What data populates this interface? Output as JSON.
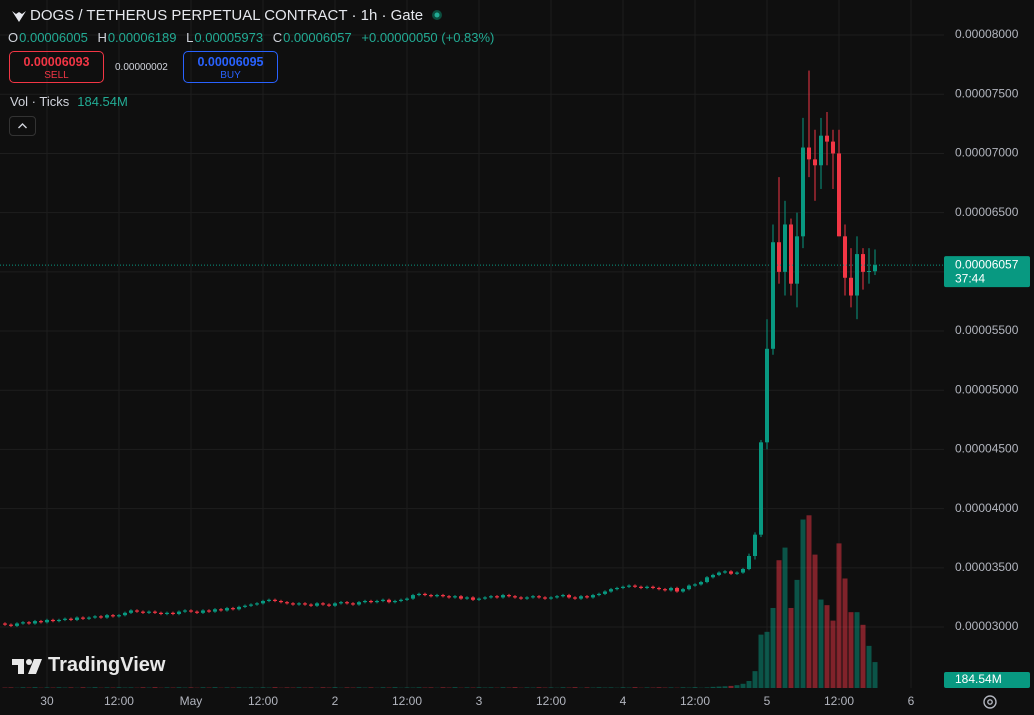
{
  "header": {
    "symbol": "DOGS / TETHERUS PERPETUAL CONTRACT · 1h · Gate",
    "ohlc": [
      {
        "key": "O",
        "value": "0.00006005"
      },
      {
        "key": "H",
        "value": "0.00006189"
      },
      {
        "key": "L",
        "value": "0.00005973"
      },
      {
        "key": "C",
        "value": "0.00006057"
      }
    ],
    "change": "+0.00000050 (+0.83%)",
    "sell_price": "0.00006093",
    "sell_label": "SELL",
    "spread": "0.00000002",
    "buy_price": "0.00006095",
    "buy_label": "BUY",
    "volume_legend": "Vol · Ticks",
    "logo": "TradingView"
  },
  "chart_data": {
    "type": "candlestick",
    "x": [
      -7,
      -6,
      -5,
      -4,
      -3,
      -2,
      -1,
      0,
      1,
      2,
      3,
      4,
      5,
      6,
      7,
      8,
      9,
      10,
      11,
      12,
      13,
      14,
      15,
      16,
      17,
      18,
      19,
      20,
      21,
      22,
      23,
      24,
      25,
      26,
      27,
      28,
      29,
      30,
      31,
      32,
      33,
      34,
      35,
      36,
      37,
      38,
      39,
      40,
      41,
      42,
      43,
      44,
      45,
      46,
      47,
      48,
      49,
      50,
      51,
      52,
      53,
      54,
      55,
      56,
      57,
      58,
      59,
      60,
      61,
      62,
      63,
      64,
      65,
      66,
      67,
      68,
      69,
      70,
      71,
      72,
      73,
      74,
      75,
      76,
      77,
      78,
      79,
      80,
      81,
      82,
      83,
      84,
      85,
      86,
      87,
      88,
      89,
      90,
      91,
      92,
      93,
      94,
      95,
      96,
      97,
      98,
      99,
      100,
      101,
      102,
      103,
      104,
      105,
      106,
      107,
      108,
      109,
      110,
      111,
      112,
      113,
      114,
      115,
      116,
      117,
      118,
      119,
      120,
      121,
      122,
      123,
      124,
      125,
      126,
      127,
      128,
      129,
      130,
      131,
      132,
      133,
      134,
      135,
      136,
      137,
      138
    ],
    "open": [
      3.03e-05,
      3.02e-05,
      3.01e-05,
      3.03e-05,
      3.04e-05,
      3.03e-05,
      3.05e-05,
      3.04e-05,
      3.06e-05,
      3.05e-05,
      3.06e-05,
      3.07e-05,
      3.06e-05,
      3.08e-05,
      3.07e-05,
      3.08e-05,
      3.09e-05,
      3.08e-05,
      3.1e-05,
      3.09e-05,
      3.1e-05,
      3.12e-05,
      3.14e-05,
      3.13e-05,
      3.12e-05,
      3.13e-05,
      3.12e-05,
      3.11e-05,
      3.12e-05,
      3.11e-05,
      3.13e-05,
      3.14e-05,
      3.13e-05,
      3.12e-05,
      3.14e-05,
      3.13e-05,
      3.15e-05,
      3.14e-05,
      3.16e-05,
      3.15e-05,
      3.17e-05,
      3.18e-05,
      3.19e-05,
      3.2e-05,
      3.22e-05,
      3.23e-05,
      3.22e-05,
      3.21e-05,
      3.2e-05,
      3.19e-05,
      3.2e-05,
      3.19e-05,
      3.18e-05,
      3.2e-05,
      3.19e-05,
      3.18e-05,
      3.2e-05,
      3.21e-05,
      3.2e-05,
      3.19e-05,
      3.21e-05,
      3.22e-05,
      3.21e-05,
      3.22e-05,
      3.23e-05,
      3.21e-05,
      3.22e-05,
      3.23e-05,
      3.24e-05,
      3.27e-05,
      3.28e-05,
      3.27e-05,
      3.26e-05,
      3.27e-05,
      3.26e-05,
      3.25e-05,
      3.26e-05,
      3.24e-05,
      3.25e-05,
      3.23e-05,
      3.24e-05,
      3.25e-05,
      3.26e-05,
      3.25e-05,
      3.27e-05,
      3.26e-05,
      3.25e-05,
      3.24e-05,
      3.25e-05,
      3.26e-05,
      3.25e-05,
      3.24e-05,
      3.25e-05,
      3.26e-05,
      3.27e-05,
      3.25e-05,
      3.24e-05,
      3.26e-05,
      3.25e-05,
      3.27e-05,
      3.28e-05,
      3.3e-05,
      3.32e-05,
      3.33e-05,
      3.34e-05,
      3.35e-05,
      3.34e-05,
      3.33e-05,
      3.34e-05,
      3.33e-05,
      3.32e-05,
      3.31e-05,
      3.33e-05,
      3.3e-05,
      3.32e-05,
      3.35e-05,
      3.36e-05,
      3.38e-05,
      3.42e-05,
      3.44e-05,
      3.46e-05,
      3.47e-05,
      3.45e-05,
      3.46e-05,
      3.49e-05,
      3.6e-05,
      3.78e-05,
      4.56e-05,
      5.35e-05,
      6.25e-05,
      6e-05,
      6.4e-05,
      5.9e-05,
      6.3e-05,
      7.05e-05,
      6.95e-05,
      6.9e-05,
      7.15e-05,
      7.1e-05,
      7e-05,
      6.3e-05,
      5.95e-05,
      5.8e-05,
      6.15e-05,
      6e-05,
      6.005e-05
    ],
    "high": [
      3.04e-05,
      3.03e-05,
      3.04e-05,
      3.05e-05,
      3.05e-05,
      3.06e-05,
      3.06e-05,
      3.07e-05,
      3.07e-05,
      3.07e-05,
      3.08e-05,
      3.08e-05,
      3.09e-05,
      3.09e-05,
      3.09e-05,
      3.1e-05,
      3.1e-05,
      3.11e-05,
      3.11e-05,
      3.11e-05,
      3.13e-05,
      3.15e-05,
      3.15e-05,
      3.14e-05,
      3.14e-05,
      3.14e-05,
      3.13e-05,
      3.13e-05,
      3.13e-05,
      3.14e-05,
      3.15e-05,
      3.15e-05,
      3.14e-05,
      3.15e-05,
      3.15e-05,
      3.16e-05,
      3.16e-05,
      3.17e-05,
      3.17e-05,
      3.18e-05,
      3.19e-05,
      3.2e-05,
      3.21e-05,
      3.23e-05,
      3.24e-05,
      3.24e-05,
      3.23e-05,
      3.22e-05,
      3.21e-05,
      3.21e-05,
      3.21e-05,
      3.2e-05,
      3.21e-05,
      3.21e-05,
      3.2e-05,
      3.21e-05,
      3.22e-05,
      3.22e-05,
      3.21e-05,
      3.22e-05,
      3.23e-05,
      3.23e-05,
      3.23e-05,
      3.24e-05,
      3.24e-05,
      3.23e-05,
      3.24e-05,
      3.25e-05,
      3.28e-05,
      3.29e-05,
      3.29e-05,
      3.28e-05,
      3.28e-05,
      3.28e-05,
      3.27e-05,
      3.27e-05,
      3.27e-05,
      3.26e-05,
      3.26e-05,
      3.25e-05,
      3.26e-05,
      3.27e-05,
      3.27e-05,
      3.28e-05,
      3.28e-05,
      3.27e-05,
      3.26e-05,
      3.26e-05,
      3.27e-05,
      3.27e-05,
      3.26e-05,
      3.26e-05,
      3.27e-05,
      3.28e-05,
      3.28e-05,
      3.26e-05,
      3.27e-05,
      3.27e-05,
      3.28e-05,
      3.29e-05,
      3.31e-05,
      3.33e-05,
      3.34e-05,
      3.35e-05,
      3.36e-05,
      3.36e-05,
      3.35e-05,
      3.35e-05,
      3.35e-05,
      3.34e-05,
      3.33e-05,
      3.34e-05,
      3.34e-05,
      3.33e-05,
      3.36e-05,
      3.37e-05,
      3.39e-05,
      3.43e-05,
      3.45e-05,
      3.47e-05,
      3.48e-05,
      3.48e-05,
      3.47e-05,
      3.5e-05,
      3.62e-05,
      3.8e-05,
      4.58e-05,
      5.6e-05,
      6.4e-05,
      6.8e-05,
      6.6e-05,
      6.45e-05,
      6.5e-05,
      7.3e-05,
      7.7e-05,
      7.2e-05,
      7.3e-05,
      7.35e-05,
      7.2e-05,
      7.2e-05,
      6.4e-05,
      6.2e-05,
      6.3e-05,
      6.2e-05,
      6.2e-05,
      6.189e-05
    ],
    "low": [
      3.01e-05,
      3e-05,
      3e-05,
      3.02e-05,
      3.02e-05,
      3.02e-05,
      3.03e-05,
      3.03e-05,
      3.04e-05,
      3.04e-05,
      3.05e-05,
      3.05e-05,
      3.05e-05,
      3.06e-05,
      3.06e-05,
      3.07e-05,
      3.07e-05,
      3.07e-05,
      3.08e-05,
      3.08e-05,
      3.09e-05,
      3.11e-05,
      3.12e-05,
      3.11e-05,
      3.11e-05,
      3.11e-05,
      3.1e-05,
      3.1e-05,
      3.1e-05,
      3.1e-05,
      3.12e-05,
      3.12e-05,
      3.11e-05,
      3.11e-05,
      3.12e-05,
      3.12e-05,
      3.13e-05,
      3.13e-05,
      3.14e-05,
      3.14e-05,
      3.16e-05,
      3.17e-05,
      3.18e-05,
      3.19e-05,
      3.21e-05,
      3.21e-05,
      3.2e-05,
      3.19e-05,
      3.18e-05,
      3.18e-05,
      3.18e-05,
      3.17e-05,
      3.17e-05,
      3.18e-05,
      3.17e-05,
      3.17e-05,
      3.19e-05,
      3.19e-05,
      3.18e-05,
      3.18e-05,
      3.2e-05,
      3.2e-05,
      3.2e-05,
      3.21e-05,
      3.2e-05,
      3.2e-05,
      3.21e-05,
      3.22e-05,
      3.23e-05,
      3.26e-05,
      3.26e-05,
      3.25e-05,
      3.25e-05,
      3.25e-05,
      3.24e-05,
      3.24e-05,
      3.23e-05,
      3.23e-05,
      3.22e-05,
      3.22e-05,
      3.23e-05,
      3.24e-05,
      3.24e-05,
      3.24e-05,
      3.25e-05,
      3.24e-05,
      3.23e-05,
      3.23e-05,
      3.24e-05,
      3.24e-05,
      3.23e-05,
      3.23e-05,
      3.24e-05,
      3.25e-05,
      3.24e-05,
      3.23e-05,
      3.23e-05,
      3.24e-05,
      3.24e-05,
      3.26e-05,
      3.27e-05,
      3.29e-05,
      3.31e-05,
      3.32e-05,
      3.33e-05,
      3.33e-05,
      3.32e-05,
      3.32e-05,
      3.32e-05,
      3.31e-05,
      3.3e-05,
      3.3e-05,
      3.29e-05,
      3.29e-05,
      3.31e-05,
      3.34e-05,
      3.35e-05,
      3.37e-05,
      3.41e-05,
      3.43e-05,
      3.45e-05,
      3.44e-05,
      3.44e-05,
      3.45e-05,
      3.48e-05,
      3.57e-05,
      3.76e-05,
      4.5e-05,
      5.3e-05,
      5.9e-05,
      5.8e-05,
      5.8e-05,
      5.7e-05,
      6.2e-05,
      6.8e-05,
      6.6e-05,
      6.7e-05,
      6.9e-05,
      6.7e-05,
      6.3e-05,
      5.8e-05,
      5.7e-05,
      5.6e-05,
      5.85e-05,
      5.9e-05,
      5.973e-05
    ],
    "close": [
      3.02e-05,
      3.01e-05,
      3.03e-05,
      3.04e-05,
      3.03e-05,
      3.05e-05,
      3.04e-05,
      3.06e-05,
      3.05e-05,
      3.06e-05,
      3.07e-05,
      3.06e-05,
      3.08e-05,
      3.07e-05,
      3.08e-05,
      3.09e-05,
      3.08e-05,
      3.1e-05,
      3.09e-05,
      3.1e-05,
      3.12e-05,
      3.14e-05,
      3.13e-05,
      3.12e-05,
      3.13e-05,
      3.12e-05,
      3.11e-05,
      3.12e-05,
      3.11e-05,
      3.13e-05,
      3.14e-05,
      3.13e-05,
      3.12e-05,
      3.14e-05,
      3.13e-05,
      3.15e-05,
      3.14e-05,
      3.16e-05,
      3.15e-05,
      3.17e-05,
      3.18e-05,
      3.19e-05,
      3.2e-05,
      3.22e-05,
      3.23e-05,
      3.22e-05,
      3.21e-05,
      3.2e-05,
      3.19e-05,
      3.2e-05,
      3.19e-05,
      3.18e-05,
      3.2e-05,
      3.19e-05,
      3.18e-05,
      3.2e-05,
      3.21e-05,
      3.2e-05,
      3.19e-05,
      3.21e-05,
      3.22e-05,
      3.21e-05,
      3.22e-05,
      3.23e-05,
      3.21e-05,
      3.22e-05,
      3.23e-05,
      3.24e-05,
      3.27e-05,
      3.28e-05,
      3.27e-05,
      3.26e-05,
      3.27e-05,
      3.26e-05,
      3.25e-05,
      3.26e-05,
      3.24e-05,
      3.25e-05,
      3.23e-05,
      3.24e-05,
      3.25e-05,
      3.26e-05,
      3.25e-05,
      3.27e-05,
      3.26e-05,
      3.25e-05,
      3.24e-05,
      3.25e-05,
      3.26e-05,
      3.25e-05,
      3.24e-05,
      3.25e-05,
      3.26e-05,
      3.27e-05,
      3.25e-05,
      3.24e-05,
      3.26e-05,
      3.25e-05,
      3.27e-05,
      3.28e-05,
      3.3e-05,
      3.32e-05,
      3.33e-05,
      3.34e-05,
      3.35e-05,
      3.34e-05,
      3.33e-05,
      3.34e-05,
      3.33e-05,
      3.32e-05,
      3.31e-05,
      3.33e-05,
      3.3e-05,
      3.32e-05,
      3.35e-05,
      3.36e-05,
      3.38e-05,
      3.42e-05,
      3.44e-05,
      3.46e-05,
      3.47e-05,
      3.45e-05,
      3.46e-05,
      3.49e-05,
      3.6e-05,
      3.78e-05,
      4.56e-05,
      5.35e-05,
      6.25e-05,
      6e-05,
      6.4e-05,
      5.9e-05,
      6.3e-05,
      7.05e-05,
      6.95e-05,
      6.9e-05,
      7.15e-05,
      7.1e-05,
      7e-05,
      6.3e-05,
      5.95e-05,
      5.8e-05,
      6.15e-05,
      6e-05,
      6.007e-05,
      6.057e-05
    ],
    "volume": {
      "values": [
        3000000,
        4000000,
        2000000,
        5000000,
        3000000,
        6000000,
        2000000,
        4000000,
        3000000,
        5000000,
        3000000,
        4000000,
        2000000,
        5000000,
        3000000,
        6000000,
        2000000,
        4000000,
        3000000,
        5000000,
        3000000,
        4000000,
        2000000,
        5000000,
        3000000,
        6000000,
        2000000,
        4000000,
        3000000,
        5000000,
        3000000,
        4000000,
        2000000,
        5000000,
        3000000,
        6000000,
        2000000,
        4000000,
        3000000,
        5000000,
        3000000,
        4000000,
        2000000,
        5000000,
        3000000,
        6000000,
        2000000,
        4000000,
        3000000,
        5000000,
        3000000,
        4000000,
        2000000,
        5000000,
        3000000,
        6000000,
        2000000,
        4000000,
        3000000,
        5000000,
        3000000,
        4000000,
        2000000,
        5000000,
        3000000,
        6000000,
        2000000,
        4000000,
        3000000,
        5000000,
        3000000,
        4000000,
        2000000,
        5000000,
        3000000,
        6000000,
        2000000,
        4000000,
        3000000,
        5000000,
        3000000,
        4000000,
        2000000,
        5000000,
        3000000,
        6000000,
        2000000,
        4000000,
        3000000,
        5000000,
        3000000,
        4000000,
        2000000,
        5000000,
        3000000,
        6000000,
        2000000,
        4000000,
        3000000,
        5000000,
        3000000,
        4000000,
        2000000,
        5000000,
        3000000,
        6000000,
        2000000,
        4000000,
        3000000,
        5000000,
        3000000,
        4000000,
        2000000,
        5000000,
        3000000,
        6000000,
        2000000,
        4000000,
        8000000,
        10000000,
        12000000,
        15000000,
        20000000,
        30000000,
        50000000,
        120000000,
        380000000,
        400000000,
        570000000,
        910000000,
        1000000000,
        570000000,
        770000000,
        1200000000,
        1230000000,
        950000000,
        630000000,
        590000000,
        480000000,
        1030000000,
        780000000,
        540000000,
        540000000,
        450000000,
        300000000,
        184540000
      ],
      "value_labels": [
        null,
        null,
        null,
        null,
        null,
        null,
        null,
        null,
        null,
        null,
        null,
        null,
        null,
        null,
        null,
        null,
        null,
        null,
        null,
        null,
        null,
        null,
        null,
        null,
        null,
        null,
        null,
        null,
        null,
        null,
        null,
        null,
        null,
        null,
        null,
        null,
        null,
        null,
        null,
        null,
        null,
        null,
        null,
        null,
        null,
        null,
        null,
        null,
        null,
        null,
        null,
        null,
        null,
        null,
        null,
        null,
        null,
        null,
        null,
        null,
        null,
        null,
        null,
        null,
        null,
        null,
        null,
        null,
        null,
        null,
        null,
        null,
        null,
        null,
        null,
        null,
        null,
        null,
        null,
        null,
        null,
        null,
        null,
        null,
        null,
        null,
        null,
        null,
        null,
        null,
        null,
        null,
        null,
        null,
        null,
        null,
        null,
        null,
        null,
        null,
        null,
        null,
        null,
        null,
        null,
        null,
        null,
        null,
        null,
        null,
        null,
        null,
        null,
        null,
        null,
        null,
        null,
        null,
        null,
        null,
        null,
        null,
        null,
        null,
        null,
        null,
        null,
        null,
        null,
        null,
        null,
        null,
        null,
        null,
        null,
        null,
        null,
        null,
        null,
        null,
        null,
        null,
        null,
        null,
        null,
        "184.54M"
      ]
    },
    "countdown": "37:44",
    "up_color": "#089981",
    "down_color": "#f23645",
    "grid": true,
    "xlim": [
      -7.83,
      149.5
    ],
    "xticks": [
      {
        "value": 0,
        "label": "30"
      },
      {
        "value": 12,
        "label": "12:00"
      },
      {
        "value": 24,
        "label": "May"
      },
      {
        "value": 36,
        "label": "12:00"
      },
      {
        "value": 48,
        "label": "2"
      },
      {
        "value": 60,
        "label": "12:00"
      },
      {
        "value": 72,
        "label": "3"
      },
      {
        "value": 84,
        "label": "12:00"
      },
      {
        "value": 96,
        "label": "4"
      },
      {
        "value": 108,
        "label": "12:00"
      },
      {
        "value": 120,
        "label": "5"
      },
      {
        "value": 132,
        "label": "12:00"
      },
      {
        "value": 144,
        "label": "6"
      }
    ],
    "ylim": [
      2.485e-05,
      8.296e-05
    ],
    "yticks": [
      {
        "value": 3e-05,
        "label": "0.00003000"
      },
      {
        "value": 3.5e-05,
        "label": "0.00003500"
      },
      {
        "value": 4e-05,
        "label": "0.00004000"
      },
      {
        "value": 4.5e-05,
        "label": "0.00004500"
      },
      {
        "value": 5e-05,
        "label": "0.00005000"
      },
      {
        "value": 5.5e-05,
        "label": "0.00005500"
      },
      {
        "value": 6e-05,
        "label": "0.00006000"
      },
      {
        "value": 6.5e-05,
        "label": "0.00006500"
      },
      {
        "value": 7e-05,
        "label": "0.00007000"
      },
      {
        "value": 7.5e-05,
        "label": "0.00007500"
      },
      {
        "value": 8e-05,
        "label": "0.00008000"
      }
    ],
    "y2lim": [
      0,
      4900000000
    ]
  }
}
